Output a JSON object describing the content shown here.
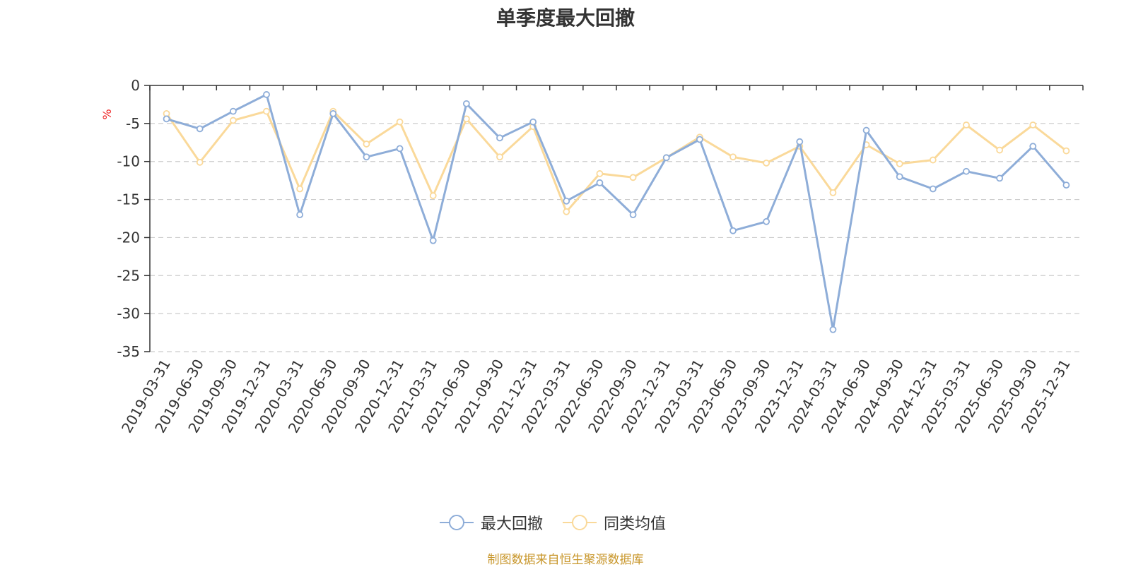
{
  "chart_data": {
    "type": "line",
    "title": "单季度最大回撤",
    "ylabel": "%",
    "xlabel": "",
    "ylim": [
      -35,
      0
    ],
    "yticks": [
      0,
      -5,
      -10,
      -15,
      -20,
      -25,
      -30,
      -35
    ],
    "grid": true,
    "legend_position": "bottom-center",
    "categories": [
      "2019-03-31",
      "2019-06-30",
      "2019-09-30",
      "2019-12-31",
      "2020-03-31",
      "2020-06-30",
      "2020-09-30",
      "2020-12-31",
      "2021-03-31",
      "2021-06-30",
      "2021-09-30",
      "2021-12-31",
      "2022-03-31",
      "2022-06-30",
      "2022-09-30",
      "2022-12-31",
      "2023-03-31",
      "2023-06-30",
      "2023-09-30",
      "2023-12-31",
      "2024-03-31",
      "2024-06-30",
      "2024-09-30",
      "2024-12-31",
      "2025-03-31",
      "2025-06-30",
      "2025-09-30",
      "2025-12-31"
    ],
    "series": [
      {
        "name": "最大回撤",
        "color": "#8eadd8",
        "values": [
          -4.4,
          -5.7,
          -3.4,
          -1.2,
          -17.0,
          -3.7,
          -9.4,
          -8.3,
          -20.4,
          -2.4,
          -6.9,
          -4.8,
          -15.2,
          -12.8,
          -17.0,
          -9.5,
          -7.1,
          -19.1,
          -17.9,
          -7.4,
          -32.1,
          -5.9,
          -12.0,
          -13.6,
          -11.3,
          -12.2,
          -8.0,
          -13.1
        ]
      },
      {
        "name": "同类均值",
        "color": "#fad99a",
        "values": [
          -3.7,
          -10.1,
          -4.6,
          -3.4,
          -13.6,
          -3.4,
          -7.7,
          -4.8,
          -14.5,
          -4.4,
          -9.4,
          -5.4,
          -16.6,
          -11.6,
          -12.1,
          -9.5,
          -6.8,
          -9.4,
          -10.2,
          -8.0,
          -14.1,
          -7.8,
          -10.3,
          -9.8,
          -5.2,
          -8.5,
          -5.2,
          -8.6
        ]
      }
    ]
  },
  "footer": {
    "source": "制图数据来自恒生聚源数据库"
  }
}
